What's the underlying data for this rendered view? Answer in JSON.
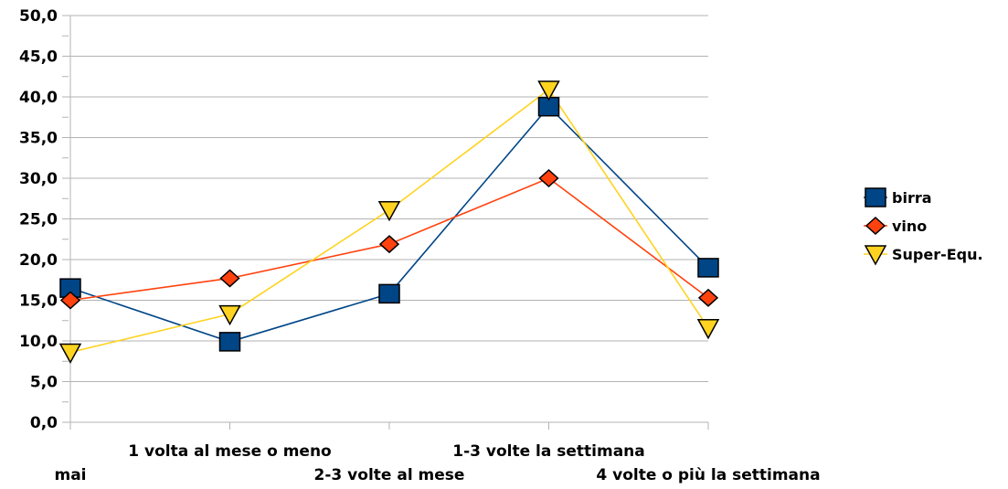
{
  "chart_data": {
    "type": "line",
    "title": "",
    "xlabel": "",
    "ylabel": "",
    "categories": [
      "mai",
      "1 volta al mese o meno",
      "2-3 volte al mese",
      "1-3 volte la settimana",
      "4 volte o più la settimana"
    ],
    "ylim": [
      0,
      50
    ],
    "yticks": [
      "0,0",
      "5,0",
      "10,0",
      "15,0",
      "20,0",
      "25,0",
      "30,0",
      "35,0",
      "40,0",
      "45,0",
      "50,0"
    ],
    "grid": true,
    "legend_position": "right",
    "series": [
      {
        "name": "birra",
        "values": [
          16.5,
          9.9,
          15.8,
          38.8,
          19.0
        ],
        "color": "#004586",
        "marker": "square"
      },
      {
        "name": "vino",
        "values": [
          15.0,
          17.7,
          21.9,
          30.0,
          15.3
        ],
        "color": "#ff420e",
        "marker": "diamond"
      },
      {
        "name": "Super-Equ.",
        "values": [
          8.6,
          13.3,
          26.1,
          40.9,
          11.6
        ],
        "color": "#ffd320",
        "marker": "triangle-down"
      }
    ]
  }
}
